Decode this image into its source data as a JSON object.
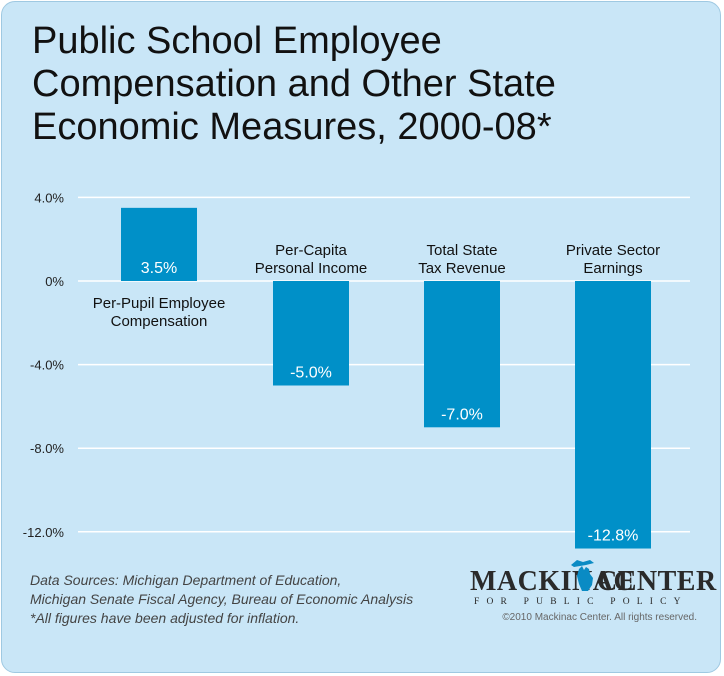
{
  "title_lines": [
    "Public School Employee",
    "Compensation and Other State",
    "Economic Measures, 2000-08*"
  ],
  "chart_data": {
    "type": "bar",
    "categories": [
      [
        "Per-Pupil Employee",
        "Compensation"
      ],
      [
        "Per-Capita",
        "Personal Income"
      ],
      [
        "Total State",
        "Tax Revenue"
      ],
      [
        "Private Sector",
        "Earnings"
      ]
    ],
    "values": [
      3.5,
      -5.0,
      -7.0,
      -12.8
    ],
    "value_labels": [
      "3.5%",
      "-5.0%",
      "-7.0%",
      "-12.8%"
    ],
    "yticks": [
      4,
      0,
      -4,
      -8,
      -12
    ],
    "ytick_labels": [
      "4.0%",
      "0%",
      "-4.0%",
      "-8.0%",
      "-12.0%"
    ],
    "ylim": [
      -12.8,
      4.0
    ],
    "grid": true,
    "bar_color": "#0090c8",
    "grid_color": "#ffffff"
  },
  "sources": [
    "Data Sources: Michigan Department of Education,",
    "Michigan Senate Fiscal Agency, Bureau of Economic Analysis",
    "*All figures have been adjusted for inflation."
  ],
  "logo": {
    "left_text": "MACKINAC",
    "right_text": "CENTER",
    "tagline": "FOR PUBLIC POLICY",
    "icon": "michigan-icon",
    "icon_color": "#0a8bc4"
  },
  "copyright": "©2010 Mackinac Center. All rights reserved."
}
